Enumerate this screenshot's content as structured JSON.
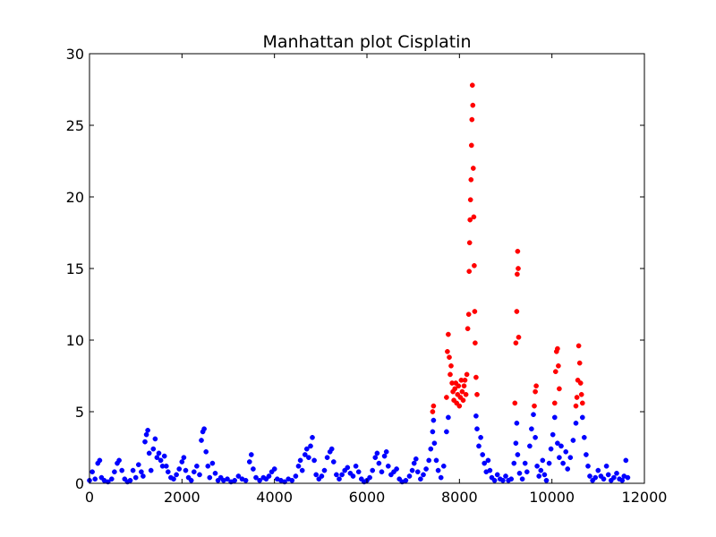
{
  "chart_data": {
    "type": "scatter",
    "title": "Manhattan plot Cisplatin",
    "xlabel": "",
    "ylabel": "",
    "xlim": [
      0,
      12000
    ],
    "ylim": [
      0,
      30
    ],
    "x_ticks": [
      0,
      2000,
      4000,
      6000,
      8000,
      10000,
      12000
    ],
    "y_ticks": [
      0,
      5,
      10,
      15,
      20,
      25,
      30
    ],
    "x_tick_labels": [
      "0",
      "2000",
      "4000",
      "6000",
      "8000",
      "10000",
      "12000"
    ],
    "y_tick_labels": [
      "0",
      "5",
      "10",
      "15",
      "20",
      "25",
      "30"
    ],
    "grid": false,
    "legend": "none",
    "colors": {
      "below_threshold": "#0000ff",
      "above_threshold": "#ff0000",
      "axes": "#000000"
    },
    "significance_threshold": 5,
    "series": [
      {
        "color": "#0000ff",
        "points": [
          [
            0,
            0.2
          ],
          [
            60,
            0.8
          ],
          [
            120,
            0.3
          ],
          [
            180,
            1.4
          ],
          [
            220,
            1.6
          ],
          [
            260,
            0.4
          ],
          [
            320,
            0.2
          ],
          [
            400,
            0.1
          ],
          [
            480,
            0.3
          ],
          [
            540,
            0.8
          ],
          [
            600,
            1.4
          ],
          [
            640,
            1.6
          ],
          [
            700,
            0.9
          ],
          [
            760,
            0.3
          ],
          [
            820,
            0.1
          ],
          [
            880,
            0.2
          ],
          [
            940,
            0.9
          ],
          [
            1000,
            0.4
          ],
          [
            1060,
            1.3
          ],
          [
            1120,
            0.8
          ],
          [
            1160,
            0.5
          ],
          [
            1200,
            2.9
          ],
          [
            1230,
            3.4
          ],
          [
            1260,
            3.7
          ],
          [
            1290,
            2.1
          ],
          [
            1330,
            0.9
          ],
          [
            1380,
            2.4
          ],
          [
            1420,
            3.1
          ],
          [
            1460,
            1.8
          ],
          [
            1500,
            2.1
          ],
          [
            1540,
            1.6
          ],
          [
            1580,
            1.2
          ],
          [
            1620,
            1.9
          ],
          [
            1660,
            1.2
          ],
          [
            1700,
            0.8
          ],
          [
            1760,
            0.4
          ],
          [
            1820,
            0.3
          ],
          [
            1880,
            0.6
          ],
          [
            1940,
            1.0
          ],
          [
            2000,
            1.5
          ],
          [
            2040,
            1.8
          ],
          [
            2080,
            0.9
          ],
          [
            2140,
            0.4
          ],
          [
            2200,
            0.2
          ],
          [
            2260,
            0.8
          ],
          [
            2320,
            1.2
          ],
          [
            2380,
            0.6
          ],
          [
            2420,
            3.0
          ],
          [
            2450,
            3.6
          ],
          [
            2480,
            3.8
          ],
          [
            2520,
            2.2
          ],
          [
            2560,
            1.2
          ],
          [
            2600,
            0.4
          ],
          [
            2660,
            1.4
          ],
          [
            2720,
            0.7
          ],
          [
            2780,
            0.2
          ],
          [
            2840,
            0.4
          ],
          [
            2900,
            0.2
          ],
          [
            2980,
            0.3
          ],
          [
            3060,
            0.1
          ],
          [
            3140,
            0.2
          ],
          [
            3220,
            0.5
          ],
          [
            3300,
            0.3
          ],
          [
            3380,
            0.2
          ],
          [
            3460,
            1.5
          ],
          [
            3500,
            2.0
          ],
          [
            3540,
            1.0
          ],
          [
            3600,
            0.4
          ],
          [
            3680,
            0.2
          ],
          [
            3760,
            0.4
          ],
          [
            3820,
            0.3
          ],
          [
            3880,
            0.5
          ],
          [
            3940,
            0.8
          ],
          [
            4000,
            1.0
          ],
          [
            4060,
            0.3
          ],
          [
            4140,
            0.2
          ],
          [
            4220,
            0.1
          ],
          [
            4300,
            0.3
          ],
          [
            4380,
            0.2
          ],
          [
            4460,
            0.5
          ],
          [
            4520,
            1.2
          ],
          [
            4560,
            1.6
          ],
          [
            4600,
            0.9
          ],
          [
            4660,
            2.0
          ],
          [
            4700,
            2.4
          ],
          [
            4740,
            1.8
          ],
          [
            4780,
            2.6
          ],
          [
            4820,
            3.2
          ],
          [
            4860,
            1.6
          ],
          [
            4900,
            0.6
          ],
          [
            4960,
            0.3
          ],
          [
            5020,
            0.5
          ],
          [
            5080,
            0.9
          ],
          [
            5140,
            1.8
          ],
          [
            5200,
            2.2
          ],
          [
            5240,
            2.4
          ],
          [
            5280,
            1.5
          ],
          [
            5340,
            0.6
          ],
          [
            5400,
            0.3
          ],
          [
            5460,
            0.6
          ],
          [
            5520,
            0.9
          ],
          [
            5580,
            1.1
          ],
          [
            5640,
            0.7
          ],
          [
            5700,
            0.5
          ],
          [
            5760,
            1.2
          ],
          [
            5820,
            0.8
          ],
          [
            5880,
            0.3
          ],
          [
            5940,
            0.1
          ],
          [
            6000,
            0.2
          ],
          [
            6060,
            0.4
          ],
          [
            6120,
            0.9
          ],
          [
            6180,
            1.8
          ],
          [
            6220,
            2.1
          ],
          [
            6260,
            1.4
          ],
          [
            6320,
            0.8
          ],
          [
            6380,
            1.9
          ],
          [
            6420,
            2.2
          ],
          [
            6460,
            1.2
          ],
          [
            6520,
            0.6
          ],
          [
            6580,
            0.8
          ],
          [
            6640,
            1.0
          ],
          [
            6700,
            0.3
          ],
          [
            6760,
            0.1
          ],
          [
            6840,
            0.2
          ],
          [
            6920,
            0.5
          ],
          [
            6980,
            0.9
          ],
          [
            7020,
            1.4
          ],
          [
            7060,
            1.7
          ],
          [
            7100,
            0.8
          ],
          [
            7160,
            0.3
          ],
          [
            7220,
            0.6
          ],
          [
            7280,
            1.0
          ],
          [
            7340,
            1.6
          ],
          [
            7380,
            2.4
          ],
          [
            7420,
            3.6
          ],
          [
            7440,
            4.4
          ],
          [
            7460,
            2.8
          ],
          [
            7500,
            1.6
          ],
          [
            7540,
            0.9
          ],
          [
            7600,
            0.4
          ],
          [
            7660,
            1.2
          ],
          [
            7720,
            3.6
          ],
          [
            7760,
            4.6
          ],
          [
            8360,
            4.7
          ],
          [
            8380,
            3.8
          ],
          [
            8420,
            2.6
          ],
          [
            8460,
            3.2
          ],
          [
            8500,
            2.0
          ],
          [
            8540,
            1.4
          ],
          [
            8580,
            0.8
          ],
          [
            8620,
            1.6
          ],
          [
            8660,
            0.9
          ],
          [
            8700,
            0.4
          ],
          [
            8760,
            0.2
          ],
          [
            8820,
            0.6
          ],
          [
            8880,
            0.3
          ],
          [
            8940,
            0.2
          ],
          [
            9000,
            0.5
          ],
          [
            9060,
            0.2
          ],
          [
            9120,
            0.3
          ],
          [
            9180,
            1.4
          ],
          [
            9220,
            2.8
          ],
          [
            9240,
            4.2
          ],
          [
            9260,
            2.0
          ],
          [
            9300,
            0.7
          ],
          [
            9360,
            0.3
          ],
          [
            9420,
            1.4
          ],
          [
            9460,
            0.8
          ],
          [
            9520,
            2.6
          ],
          [
            9560,
            3.8
          ],
          [
            9600,
            4.8
          ],
          [
            9640,
            3.2
          ],
          [
            9680,
            1.2
          ],
          [
            9720,
            0.5
          ],
          [
            9760,
            0.9
          ],
          [
            9800,
            1.6
          ],
          [
            9840,
            0.6
          ],
          [
            9880,
            0.2
          ],
          [
            9940,
            1.4
          ],
          [
            9980,
            2.4
          ],
          [
            10020,
            3.4
          ],
          [
            10060,
            4.6
          ],
          [
            10120,
            2.8
          ],
          [
            10160,
            1.8
          ],
          [
            10200,
            2.6
          ],
          [
            10240,
            1.4
          ],
          [
            10300,
            2.2
          ],
          [
            10340,
            1.0
          ],
          [
            10400,
            1.8
          ],
          [
            10460,
            3.0
          ],
          [
            10520,
            4.2
          ],
          [
            10660,
            4.6
          ],
          [
            10700,
            3.2
          ],
          [
            10740,
            2.0
          ],
          [
            10780,
            1.2
          ],
          [
            10820,
            0.5
          ],
          [
            10880,
            0.2
          ],
          [
            10940,
            0.4
          ],
          [
            11000,
            0.9
          ],
          [
            11060,
            0.5
          ],
          [
            11120,
            0.3
          ],
          [
            11180,
            1.2
          ],
          [
            11220,
            0.6
          ],
          [
            11280,
            0.2
          ],
          [
            11340,
            0.4
          ],
          [
            11400,
            0.7
          ],
          [
            11460,
            0.3
          ],
          [
            11520,
            0.2
          ],
          [
            11560,
            0.5
          ],
          [
            11600,
            1.6
          ],
          [
            11640,
            0.4
          ]
        ]
      },
      {
        "color": "#ff0000",
        "points": [
          [
            7420,
            5.0
          ],
          [
            7440,
            5.4
          ],
          [
            7720,
            6.0
          ],
          [
            7740,
            9.2
          ],
          [
            7760,
            10.4
          ],
          [
            7780,
            8.8
          ],
          [
            7800,
            7.6
          ],
          [
            7820,
            8.2
          ],
          [
            7840,
            7.0
          ],
          [
            7860,
            6.4
          ],
          [
            7880,
            5.8
          ],
          [
            7900,
            6.6
          ],
          [
            7920,
            7.0
          ],
          [
            7940,
            5.6
          ],
          [
            7960,
            6.2
          ],
          [
            7980,
            6.8
          ],
          [
            8000,
            5.4
          ],
          [
            8020,
            6.0
          ],
          [
            8040,
            7.2
          ],
          [
            8060,
            6.4
          ],
          [
            8080,
            5.8
          ],
          [
            8100,
            6.8
          ],
          [
            8120,
            7.2
          ],
          [
            8140,
            6.2
          ],
          [
            8160,
            7.6
          ],
          [
            8180,
            10.8
          ],
          [
            8200,
            11.8
          ],
          [
            8210,
            14.8
          ],
          [
            8220,
            16.8
          ],
          [
            8230,
            18.4
          ],
          [
            8240,
            19.8
          ],
          [
            8250,
            21.2
          ],
          [
            8260,
            23.6
          ],
          [
            8270,
            25.4
          ],
          [
            8280,
            27.8
          ],
          [
            8290,
            26.4
          ],
          [
            8300,
            22.0
          ],
          [
            8310,
            18.6
          ],
          [
            8320,
            15.2
          ],
          [
            8330,
            12.0
          ],
          [
            8340,
            9.8
          ],
          [
            8360,
            7.4
          ],
          [
            8380,
            6.2
          ],
          [
            9200,
            5.6
          ],
          [
            9220,
            9.8
          ],
          [
            9240,
            12.0
          ],
          [
            9250,
            14.6
          ],
          [
            9260,
            16.2
          ],
          [
            9270,
            15.0
          ],
          [
            9280,
            10.2
          ],
          [
            9620,
            5.4
          ],
          [
            9640,
            6.4
          ],
          [
            9660,
            6.8
          ],
          [
            10060,
            5.6
          ],
          [
            10080,
            7.8
          ],
          [
            10100,
            9.2
          ],
          [
            10120,
            9.4
          ],
          [
            10140,
            8.2
          ],
          [
            10160,
            6.6
          ],
          [
            10520,
            5.4
          ],
          [
            10540,
            6.0
          ],
          [
            10560,
            7.2
          ],
          [
            10580,
            9.6
          ],
          [
            10600,
            8.4
          ],
          [
            10620,
            7.0
          ],
          [
            10640,
            6.2
          ],
          [
            10660,
            5.6
          ]
        ]
      }
    ]
  }
}
